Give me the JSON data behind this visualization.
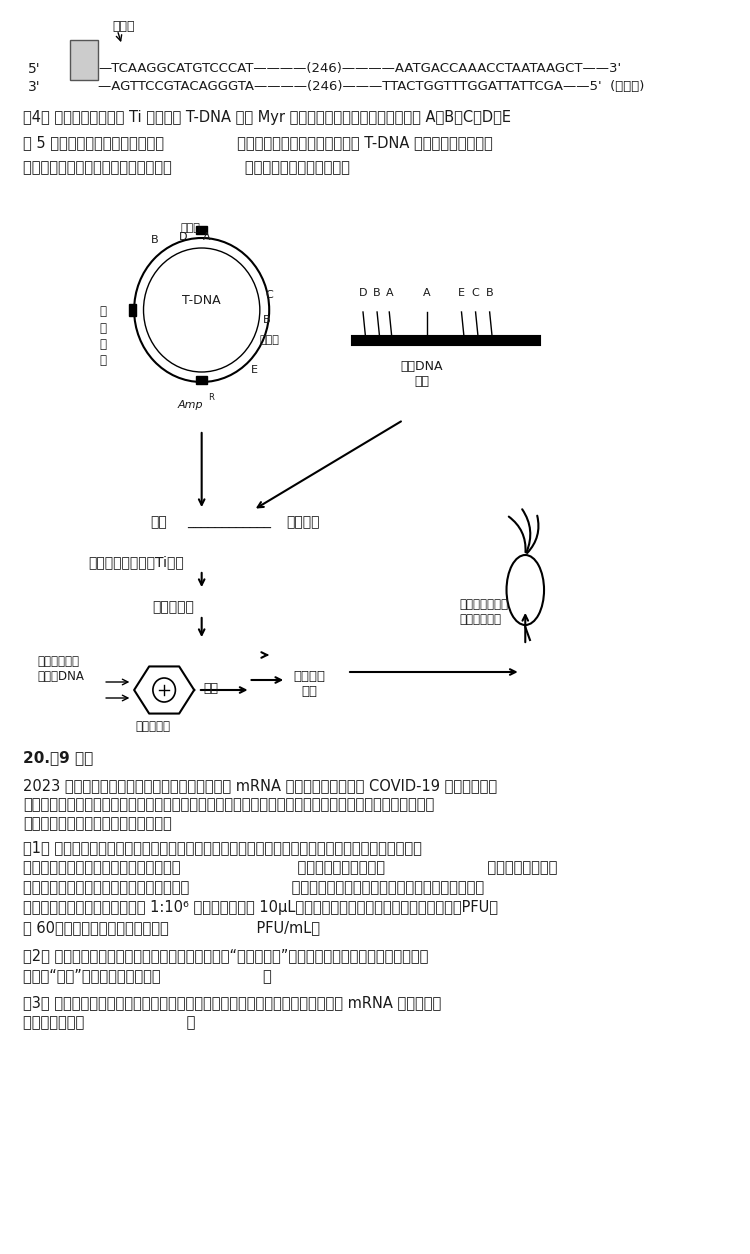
{
  "bg_color": "#f5f5f0",
  "text_color": "#1a1a1a",
  "title_fontsize": 11,
  "body_fontsize": 10.5,
  "dna_line1": "5'  —TCAAGGCATGTCCCAT————(246)————AATGACCAAACCTAATAAGCT——3'",
  "dna_line2": "3'  —AGTTCCGTACAGGGTA————(246)———TTACTGGTTTGGATTATTCGA——5'  (模板链)",
  "q4_text1": "（4） 研究人员希望采用 Ti 质粒上的 T-DNA 转移 Myr 基因，以便获得萝卜新品种。图中 A、B、C、D、E",
  "q4_text2": "为 5 种限制酶及其酶切位点，选用     （填字母）进行酵切，以使插入 T-DNA 中的目的基因正确表",
  "q4_text3": "达；将转入目的基因的体细胞培养形成     ，分化成植株，用于生产。",
  "q20_header": "20.（9 分）",
  "q20_intro": "2023 年诺贝尔生理学或医学奖获得者主要贡献为 mRNA 疫苗技术及其在抗击 COVID-19 疫情中发挥的",
  "q20_intro2": "有效作用。疫苗是通过抗原诱导免疫系统获得保护性的生物制品，疫苗研发技术路线还有灭活疫苗、弱毒疫",
  "q20_intro3": "苗、重组蛋白疫苗等。回答下列问题。",
  "q20_q1_head": "（1） 病毒是一种严格寄生在细胞中生存的生命形式，实验室增殖病毒首先要培养细胞。在体外培养动",
  "q20_q1_text": "物细胞时，使用合成培养基通常需要加入        ，培养所需气体主要是       ，为防止细胞代谢",
  "q20_q1_text2": "物积累对细胞自身造成危害，需要定期更换       。通过噪班计算法可测定病毒满度，假设在铺满贴",
  "q20_q1_text3": "壁细胞的细胞培养孔板中，接种 1:10⁶ 稀释度的病毒液 10μL，固定染色后计算噪班数（噪班形成单位，PFU）",
  "q20_q1_text4": "为 60，则该孔病毒的满度测量值为      PFU/mL。",
  "q20_q2_head": "（2） 我国通过实施计划免疫成功消灭脊高灰质炎，“人民科学家”顾方舟领导团队研制的脊高灰质炎活",
  "q20_q2_text": "疫疫苗“糖丸”，从技术路线上属于       。",
  "q20_q3_head": "（3） 在病毒感染细胞两时表面相互接触，为了更好地被免疫细胞所识别，在设计 mRNA 疫苗时，病",
  "q20_q3_text": "毒抗原优先选取       。"
}
